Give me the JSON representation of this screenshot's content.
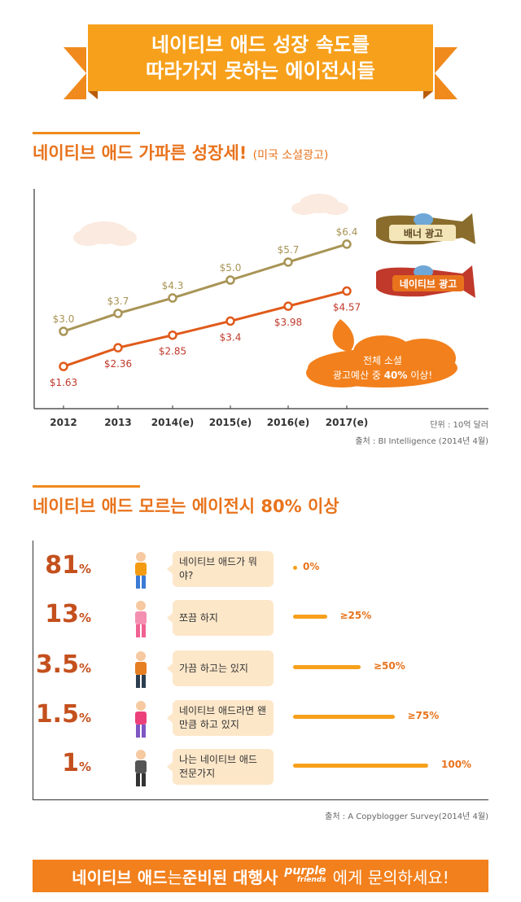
{
  "banner": {
    "line1": "네이티브 애드 성장 속도를",
    "line2": "따라가지 못하는 에이전시들"
  },
  "section1": {
    "title": "네이티브 애드 가파른 성장세!",
    "subtitle": "(미국 소셜광고)"
  },
  "planes": {
    "banner_label": "배너 광고",
    "native_label": "네이티브 광고"
  },
  "callout": {
    "line1": "전체 소셜",
    "line2_prefix": "광고예산 중 ",
    "line2_bold": "40%",
    "line2_suffix": " 이상!"
  },
  "chart_data": {
    "type": "line",
    "categories": [
      "2012",
      "2013",
      "2014(e)",
      "2015(e)",
      "2016(e)",
      "2017(e)"
    ],
    "series": [
      {
        "name": "배너 광고",
        "values": [
          3.0,
          3.7,
          4.3,
          5.0,
          5.7,
          6.4
        ],
        "labels": [
          "$3.0",
          "$3.7",
          "$4.3",
          "$5.0",
          "$5.7",
          "$6.4"
        ],
        "color": "#a89455"
      },
      {
        "name": "네이티브 광고",
        "values": [
          1.63,
          2.36,
          2.85,
          3.4,
          3.98,
          4.57
        ],
        "labels": [
          "$1.63",
          "$2.36",
          "$2.85",
          "$3.4",
          "$3.98",
          "$4.57"
        ],
        "color": "#e05a1a"
      }
    ],
    "unit": "단위 : 10억 달러",
    "source": "출처 : BI Intelligence (2014년 4월)"
  },
  "section2": {
    "title": "네이티브 애드 모르는 에이전시 80% 이상"
  },
  "bar_data": {
    "type": "bar",
    "rows": [
      {
        "pct": "81",
        "sign": "%",
        "text": "네이티브 애드가 뭐야?",
        "level": 0,
        "label": "0%"
      },
      {
        "pct": "13",
        "sign": "%",
        "text": "쪼끔 하지",
        "level": 25,
        "label": "≥25%"
      },
      {
        "pct": "3.5",
        "sign": "%",
        "text": "가끔 하고는 있지",
        "level": 50,
        "label": "≥50%"
      },
      {
        "pct": "1.5",
        "sign": "%",
        "text": "네이티브 애드라면 왠만큼 하고 있지",
        "level": 75,
        "label": "≥75%"
      },
      {
        "pct": "1",
        "sign": "%",
        "text": "나는 네이티브 애드 전문가지",
        "level": 100,
        "label": "100%"
      }
    ],
    "source": "출처 : A Copyblogger Survey(2014년 4월)"
  },
  "footer": {
    "part1": "네이티브 애드",
    "part2": "는 ",
    "part3": "준비된 대행사",
    "logo1": "purple",
    "logo2": "friends",
    "part4": "에게 문의하세요!"
  },
  "colors": {
    "orange": "#f7a01b",
    "dark_orange": "#e05a1a",
    "olive": "#a89455"
  }
}
